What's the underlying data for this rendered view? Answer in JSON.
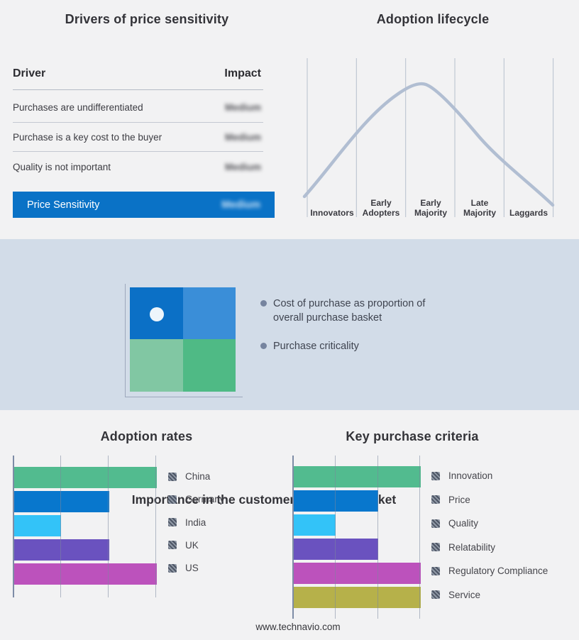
{
  "theme": {
    "page_bg": "#f2f2f3",
    "band_bg": "#d2dce8",
    "highlight_blue": "#0a72c6",
    "curve_color": "#b1bed2",
    "grid_axis_color": "#7e8ca6"
  },
  "drivers_panel": {
    "title": "Drivers of price sensitivity",
    "col_driver": "Driver",
    "col_impact": "Impact",
    "rows": [
      {
        "driver": "Purchases are undifferentiated",
        "impact": "Medium",
        "impact_obscured": true
      },
      {
        "driver": "Purchase is a key cost to the buyer",
        "impact": "Medium",
        "impact_obscured": true
      },
      {
        "driver": "Quality is not important",
        "impact": "Medium",
        "impact_obscured": true
      }
    ],
    "highlight_row": {
      "label": "Price Sensitivity",
      "impact": "Medium",
      "impact_obscured": true
    }
  },
  "basket": {
    "title": "Importance in the customer purchase basket",
    "bullets": [
      "Cost of purchase as proportion of overall purchase basket",
      "Purchase criticality"
    ],
    "quadrant_colors": {
      "top_left": "#0b70c6",
      "top_right": "#3a8ed8",
      "bottom_left": "#81c7a3",
      "bottom_right": "#4fba85"
    },
    "marker": "white dot in top-left quadrant"
  },
  "footer": {
    "url": "www.technavio.com"
  },
  "chart_data": [
    {
      "id": "lifecycle",
      "type": "line",
      "title": "Adoption lifecycle",
      "categories": [
        "Innovators",
        "Early Adopters",
        "Early Majority",
        "Late Majority",
        "Laggards"
      ],
      "shape": "bell curve rising from Innovators, peaking early in Early Majority, declining to Laggards",
      "y_normalized_at_stage_boundaries": [
        0.05,
        0.55,
        0.97,
        0.78,
        0.42,
        0.02
      ],
      "grid": "vertical stage separators only, no numeric axes",
      "line_color": "#b1bed2"
    },
    {
      "id": "adoption_rates",
      "type": "bar",
      "orientation": "horizontal",
      "title": "Adoption rates",
      "categories": [
        "China",
        "Germany",
        "India",
        "UK",
        "US"
      ],
      "values": [
        3,
        2,
        1,
        2,
        3
      ],
      "xlim": [
        0,
        3
      ],
      "value_unit": "relative gridline units (no numeric tick labels shown)",
      "colors": [
        "#52bb8f",
        "#0877cd",
        "#33c3f8",
        "#6a52bf",
        "#bc52bc"
      ],
      "legend_position": "right",
      "grid": true
    },
    {
      "id": "purchase_criteria",
      "type": "bar",
      "orientation": "horizontal",
      "title": "Key purchase criteria",
      "categories": [
        "Innovation",
        "Price",
        "Quality",
        "Relatability",
        "Regulatory Compliance",
        "Service"
      ],
      "values": [
        3,
        2,
        1,
        2,
        3,
        3
      ],
      "xlim": [
        0,
        3
      ],
      "value_unit": "relative gridline units (no numeric tick labels shown)",
      "colors": [
        "#52bb8f",
        "#0877cd",
        "#33c3f8",
        "#6a52bf",
        "#bc52bc",
        "#b6b14a"
      ],
      "legend_position": "right",
      "grid": true
    }
  ]
}
